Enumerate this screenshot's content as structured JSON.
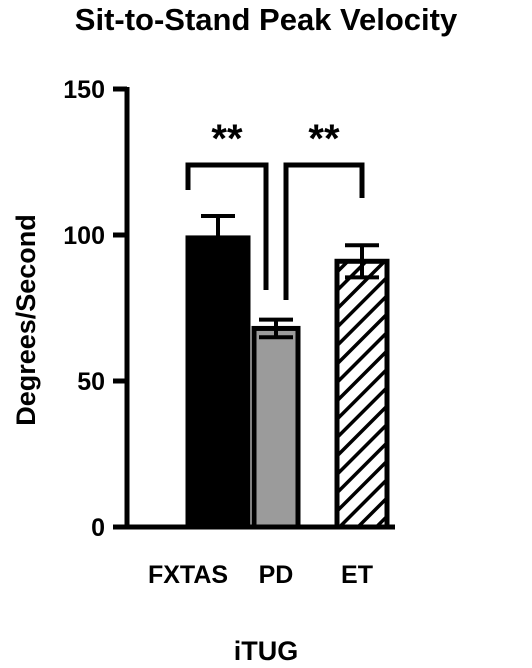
{
  "chart_data": {
    "type": "bar",
    "title": "Sit-to-Stand Peak Velocity",
    "xlabel": "iTUG",
    "ylabel": "Degrees/Second",
    "ylim": [
      0,
      150
    ],
    "yticks": [
      0,
      50,
      100,
      150
    ],
    "categories": [
      "FXTAS",
      "PD",
      "ET"
    ],
    "values": [
      99,
      68,
      91
    ],
    "error": [
      7.5,
      3,
      5.5
    ],
    "bar_fills": [
      "solid-black",
      "solid-gray",
      "diagonal-hatch"
    ],
    "colors": {
      "black": "#000000",
      "gray": "#9b9b9b",
      "white": "#ffffff"
    },
    "grid": false,
    "legend": "none",
    "significance": [
      {
        "from": 0,
        "to": 1,
        "label": "**"
      },
      {
        "from": 1,
        "to": 2,
        "label": "**"
      }
    ]
  }
}
